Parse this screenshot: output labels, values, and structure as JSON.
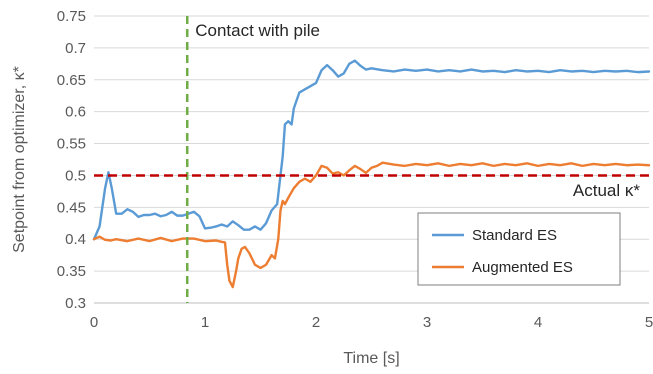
{
  "chart_data": {
    "type": "line",
    "title": "",
    "xlabel": "Time [s]",
    "ylabel": "Setpoint from optimizer, κ*",
    "xlim": [
      0,
      5
    ],
    "ylim": [
      0.3,
      0.75
    ],
    "x_ticks": [
      0,
      1,
      2,
      3,
      4,
      5
    ],
    "y_ticks": [
      0.3,
      0.35,
      0.4,
      0.45,
      0.5,
      0.55,
      0.6,
      0.65,
      0.7,
      0.75
    ],
    "grid": "horizontal",
    "legend": "bottom-right",
    "series": [
      {
        "name": "Standard ES",
        "color": "#5B9BD5",
        "x": [
          0,
          0.05,
          0.1,
          0.13,
          0.16,
          0.2,
          0.25,
          0.3,
          0.35,
          0.4,
          0.45,
          0.5,
          0.55,
          0.6,
          0.65,
          0.7,
          0.75,
          0.8,
          0.85,
          0.9,
          0.95,
          1.0,
          1.05,
          1.1,
          1.15,
          1.2,
          1.25,
          1.3,
          1.35,
          1.4,
          1.45,
          1.5,
          1.55,
          1.6,
          1.65,
          1.68,
          1.7,
          1.72,
          1.75,
          1.78,
          1.8,
          1.85,
          1.9,
          1.95,
          2.0,
          2.05,
          2.1,
          2.15,
          2.2,
          2.25,
          2.3,
          2.35,
          2.4,
          2.45,
          2.5,
          2.6,
          2.7,
          2.8,
          2.9,
          3.0,
          3.1,
          3.2,
          3.3,
          3.4,
          3.5,
          3.6,
          3.7,
          3.8,
          3.9,
          4.0,
          4.1,
          4.2,
          4.3,
          4.4,
          4.5,
          4.6,
          4.7,
          4.8,
          4.9,
          5.0
        ],
        "values": [
          0.4,
          0.42,
          0.48,
          0.505,
          0.48,
          0.44,
          0.44,
          0.447,
          0.443,
          0.435,
          0.438,
          0.438,
          0.44,
          0.436,
          0.438,
          0.443,
          0.437,
          0.437,
          0.44,
          0.443,
          0.436,
          0.417,
          0.418,
          0.42,
          0.423,
          0.42,
          0.428,
          0.422,
          0.415,
          0.415,
          0.42,
          0.415,
          0.425,
          0.445,
          0.455,
          0.5,
          0.53,
          0.58,
          0.585,
          0.58,
          0.605,
          0.63,
          0.635,
          0.64,
          0.645,
          0.665,
          0.673,
          0.665,
          0.655,
          0.66,
          0.675,
          0.68,
          0.672,
          0.666,
          0.668,
          0.665,
          0.663,
          0.666,
          0.664,
          0.666,
          0.663,
          0.665,
          0.663,
          0.666,
          0.663,
          0.664,
          0.662,
          0.665,
          0.663,
          0.664,
          0.662,
          0.665,
          0.663,
          0.664,
          0.662,
          0.664,
          0.663,
          0.664,
          0.662,
          0.663
        ]
      },
      {
        "name": "Augmented ES",
        "color": "#ED7D31",
        "x": [
          0,
          0.05,
          0.1,
          0.15,
          0.2,
          0.3,
          0.4,
          0.5,
          0.6,
          0.7,
          0.8,
          0.9,
          1.0,
          1.1,
          1.15,
          1.18,
          1.2,
          1.22,
          1.25,
          1.28,
          1.3,
          1.33,
          1.36,
          1.4,
          1.45,
          1.5,
          1.55,
          1.6,
          1.63,
          1.66,
          1.68,
          1.7,
          1.72,
          1.75,
          1.8,
          1.85,
          1.9,
          1.95,
          2.0,
          2.05,
          2.1,
          2.15,
          2.2,
          2.25,
          2.3,
          2.35,
          2.4,
          2.45,
          2.5,
          2.55,
          2.6,
          2.7,
          2.8,
          2.9,
          3.0,
          3.1,
          3.2,
          3.3,
          3.4,
          3.5,
          3.6,
          3.7,
          3.8,
          3.9,
          4.0,
          4.1,
          4.2,
          4.3,
          4.4,
          4.5,
          4.6,
          4.7,
          4.8,
          4.9,
          5.0
        ],
        "values": [
          0.4,
          0.404,
          0.399,
          0.398,
          0.4,
          0.397,
          0.401,
          0.397,
          0.402,
          0.397,
          0.401,
          0.401,
          0.397,
          0.398,
          0.396,
          0.395,
          0.36,
          0.335,
          0.325,
          0.35,
          0.37,
          0.385,
          0.388,
          0.378,
          0.36,
          0.355,
          0.36,
          0.375,
          0.37,
          0.4,
          0.445,
          0.46,
          0.455,
          0.465,
          0.48,
          0.49,
          0.495,
          0.49,
          0.5,
          0.515,
          0.512,
          0.503,
          0.505,
          0.5,
          0.508,
          0.515,
          0.51,
          0.504,
          0.512,
          0.515,
          0.52,
          0.517,
          0.515,
          0.518,
          0.516,
          0.519,
          0.515,
          0.518,
          0.516,
          0.519,
          0.515,
          0.518,
          0.516,
          0.519,
          0.515,
          0.518,
          0.516,
          0.519,
          0.515,
          0.518,
          0.516,
          0.518,
          0.516,
          0.517,
          0.516
        ]
      }
    ],
    "reference_lines": [
      {
        "orientation": "vertical",
        "value": 0.84,
        "color": "#70AD47",
        "label": "Contact with pile"
      },
      {
        "orientation": "horizontal",
        "value": 0.5,
        "color": "#C00000",
        "label": "Actual κ*"
      }
    ]
  }
}
